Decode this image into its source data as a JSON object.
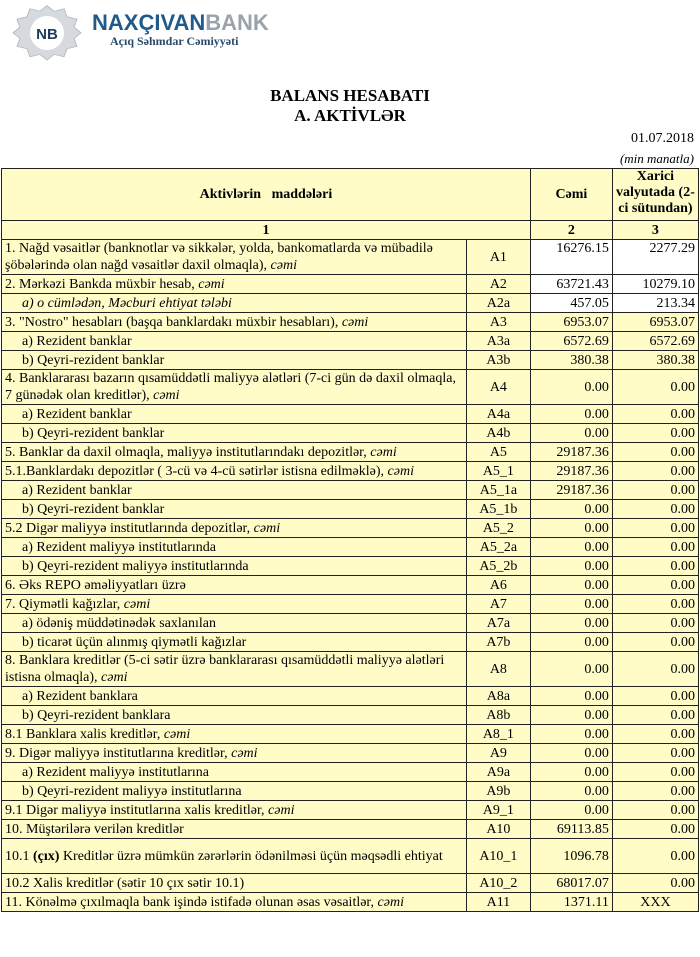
{
  "logo": {
    "brand_part1": "NAXÇIVAN",
    "brand_part2": "BANK",
    "tagline": "Açıq Səhmdar Cəmiyyəti",
    "monogram": "NB"
  },
  "title": "BALANS HESABATI",
  "subtitle": "A. AKTİVLƏR",
  "date": "01.07.2018",
  "unit": "(min manatla)",
  "colors": {
    "table_bg": "#fffcc8",
    "highlight_cells": "#ffffff",
    "brand_blue": "#1f5a8a",
    "brand_gray": "#9aa3ab"
  },
  "table": {
    "headers": [
      "Aktivlərin   maddələri",
      "Cəmi",
      "Xarici valyutada (2-ci sütundan)"
    ],
    "col_numbers": [
      "1",
      "2",
      "3"
    ],
    "rows": [
      {
        "label": "1. Nağd vəsaitlər (banknotlar və sikkələr, yolda, bankomatlarda və mübadilə şöbələrində olan nağd vəsaitlər daxil olmaqla), ",
        "em": "cəmi",
        "code": "A1",
        "total": "16276.15",
        "fx": "2277.29",
        "tall": true,
        "white": true
      },
      {
        "label": "2. Mərkəzi Bankda müxbir hesab, ",
        "em": "cəmi",
        "code": "A2",
        "total": "63721.43",
        "fx": "10279.10",
        "white": true
      },
      {
        "label": "",
        "em": "a) o cümlədən, Məcburi ehtiyat tələbi",
        "code": "A2a",
        "total": "457.05",
        "fx": "213.34",
        "indent": true,
        "white": true
      },
      {
        "label": "3. \"Nostro\" hesabları (başqa banklardakı müxbir hesabları), ",
        "em": "cəmi",
        "code": "A3",
        "total": "6953.07",
        "fx": "6953.07"
      },
      {
        "label": "a) Rezident banklar",
        "code": "A3a",
        "total": "6572.69",
        "fx": "6572.69",
        "indent": true
      },
      {
        "label": "b) Qeyri-rezident banklar",
        "code": "A3b",
        "total": "380.38",
        "fx": "380.38",
        "indent": true
      },
      {
        "label": "4. Banklararası bazarın qısamüddətli maliyyə alətləri (7-ci gün də daxil olmaqla, 7 günədək olan kreditlər), ",
        "em": "cəmi",
        "code": "A4",
        "total": "0.00",
        "fx": "0.00",
        "tall": true,
        "mid": true
      },
      {
        "label": "a) Rezident banklar",
        "code": "A4a",
        "total": "0.00",
        "fx": "0.00",
        "indent": true
      },
      {
        "label": "b) Qeyri-rezident banklar",
        "code": "A4b",
        "total": "0.00",
        "fx": "0.00",
        "indent": true
      },
      {
        "label": "5. Banklar da daxil olmaqla, maliyyə institutlarındakı depozitlər, ",
        "em": "cəmi",
        "code": "A5",
        "total": "29187.36",
        "fx": "0.00"
      },
      {
        "label": "5.1.Banklardakı depozitlər ( 3-cü və 4-cü sətirlər istisna edilməklə), ",
        "em": "cəmi",
        "code": "A5_1",
        "total": "29187.36",
        "fx": "0.00"
      },
      {
        "label": "a) Rezident banklar",
        "code": "A5_1a",
        "total": "29187.36",
        "fx": "0.00",
        "indent": true
      },
      {
        "label": "b) Qeyri-rezident banklar",
        "code": "A5_1b",
        "total": "0.00",
        "fx": "0.00",
        "indent": true
      },
      {
        "label": "5.2 Digər maliyyə institutlarında depozitlər, ",
        "em": "cəmi",
        "code": "A5_2",
        "total": "0.00",
        "fx": "0.00"
      },
      {
        "label": "a) Rezident maliyyə institutlarında",
        "code": "A5_2a",
        "total": "0.00",
        "fx": "0.00",
        "indent": true
      },
      {
        "label": "b) Qeyri-rezident maliyyə institutlarında",
        "code": "A5_2b",
        "total": "0.00",
        "fx": "0.00",
        "indent": true
      },
      {
        "label": "6. Əks REPO əməliyyatları üzrə",
        "code": "A6",
        "total": "0.00",
        "fx": "0.00"
      },
      {
        "label": "7. Qiymətli kağızlar, ",
        "em": "cəmi",
        "code": "A7",
        "total": "0.00",
        "fx": "0.00"
      },
      {
        "label": "a) ödəniş müddətinədək saxlanılan",
        "code": "A7a",
        "total": "0.00",
        "fx": "0.00",
        "indent": true
      },
      {
        "label": "b) ticarət üçün alınmış qiymətli kağızlar",
        "code": "A7b",
        "total": "0.00",
        "fx": "0.00",
        "indent": true
      },
      {
        "label": "8. Banklara kreditlər (5-ci sətir üzrə banklararası qısamüddətli maliyyə alətləri istisna olmaqla), ",
        "em": "cəmi",
        "code": "A8",
        "total": "0.00",
        "fx": "0.00",
        "tall": true,
        "mid": true
      },
      {
        "label": "a) Rezident banklara",
        "code": "A8a",
        "total": "0.00",
        "fx": "0.00",
        "indent": true
      },
      {
        "label": "b) Qeyri-rezident banklara",
        "code": "A8b",
        "total": "0.00",
        "fx": "0.00",
        "indent": true
      },
      {
        "label": "8.1 Banklara xalis kreditlər, ",
        "em": "cəmi",
        "code": "A8_1",
        "total": "0.00",
        "fx": "0.00"
      },
      {
        "label": "9. Digər maliyyə institutlarına kreditlər, ",
        "em": "cəmi",
        "code": "A9",
        "total": "0.00",
        "fx": "0.00"
      },
      {
        "label": "a) Rezident maliyyə institutlarına",
        "code": "A9a",
        "total": "0.00",
        "fx": "0.00",
        "indent": true
      },
      {
        "label": "b) Qeyri-rezident maliyyə institutlarına",
        "code": "A9b",
        "total": "0.00",
        "fx": "0.00",
        "indent": true
      },
      {
        "label": "9.1 Digər maliyyə institutlarına xalis kreditlər, ",
        "em": "cəmi",
        "code": "A9_1",
        "total": "0.00",
        "fx": "0.00"
      },
      {
        "label": "10. Müştərilərə verilən kreditlər",
        "code": "A10",
        "total": "69113.85",
        "fx": "0.00"
      },
      {
        "label": "10.1 ",
        "strong": "(çıx)",
        "after": " Kreditlər üzrə mümkün zərərlərin ödənilməsi üçün məqsədli ehtiyat",
        "code": "A10_1",
        "total": "1096.78",
        "fx": "0.00",
        "tall": true,
        "mid": true
      },
      {
        "label": "10.2 Xalis kreditlər (sətir 10 çıx sətir 10.1)",
        "code": "A10_2",
        "total": "68017.07",
        "fx": "0.00"
      },
      {
        "label": "11. Könəlmə çıxılmaqla bank işində istifadə olunan əsas vəsaitlər, ",
        "em": "cəmi",
        "code": "A11",
        "total": "1371.11",
        "fx": "XXX",
        "center_fx": true
      }
    ]
  }
}
